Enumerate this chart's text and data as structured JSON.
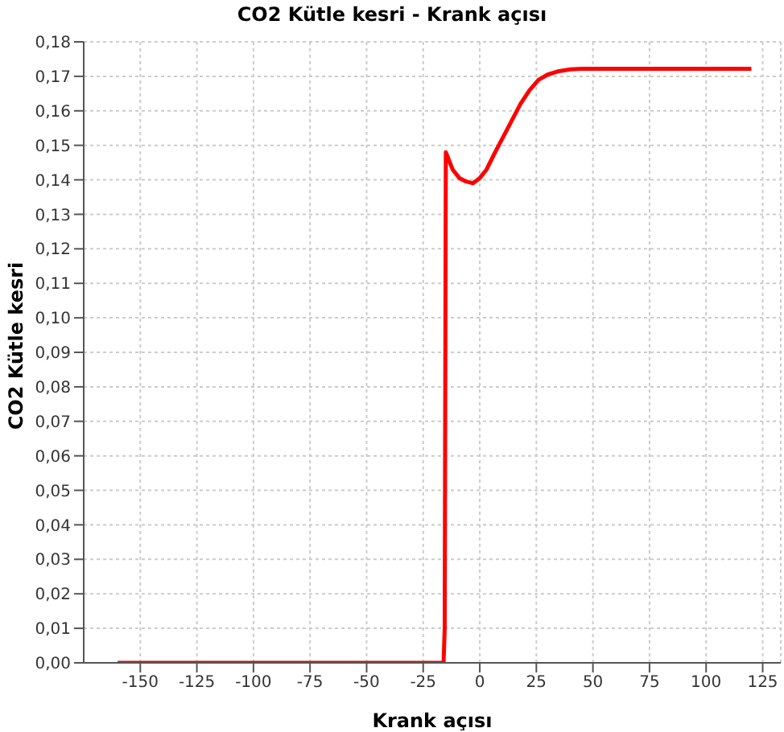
{
  "chart_data": {
    "type": "line",
    "title": "CO2 Kütle kesri - Krank açısı",
    "xlabel": "Krank açısı",
    "ylabel": "CO2 Kütle kesri",
    "x": [
      -160,
      -16,
      -15.5,
      -15,
      -12,
      -9,
      -6,
      -3,
      0,
      3,
      6,
      10,
      14,
      18,
      22,
      26,
      30,
      35,
      40,
      45,
      120
    ],
    "series": [
      {
        "color": "#ff0000",
        "values": [
          0,
          0,
          0.01,
          0.148,
          0.143,
          0.1405,
          0.1395,
          0.139,
          0.1405,
          0.143,
          0.147,
          0.152,
          0.157,
          0.162,
          0.166,
          0.169,
          0.1705,
          0.1715,
          0.172,
          0.1722,
          0.1722
        ]
      }
    ],
    "xlim": [
      -175,
      133
    ],
    "xticks": [
      -150,
      -125,
      -100,
      -75,
      -50,
      -25,
      0,
      25,
      50,
      75,
      100,
      125
    ],
    "ylim": [
      0,
      0.18
    ],
    "yticks": [
      {
        "value": 0,
        "label": "0,00"
      },
      {
        "value": 0.01,
        "label": "0,01"
      },
      {
        "value": 0.02,
        "label": "0,02"
      },
      {
        "value": 0.03,
        "label": "0,03"
      },
      {
        "value": 0.04,
        "label": "0,04"
      },
      {
        "value": 0.05,
        "label": "0,05"
      },
      {
        "value": 0.06,
        "label": "0,06"
      },
      {
        "value": 0.07,
        "label": "0,07"
      },
      {
        "value": 0.08,
        "label": "0,08"
      },
      {
        "value": 0.09,
        "label": "0,09"
      },
      {
        "value": 0.1,
        "label": "0,10"
      },
      {
        "value": 0.11,
        "label": "0,11"
      },
      {
        "value": 0.12,
        "label": "0,12"
      },
      {
        "value": 0.13,
        "label": "0,13"
      },
      {
        "value": 0.14,
        "label": "0,14"
      },
      {
        "value": 0.15,
        "label": "0,15"
      },
      {
        "value": 0.16,
        "label": "0,16"
      },
      {
        "value": 0.17,
        "label": "0,17"
      },
      {
        "value": 0.18,
        "label": "0,18"
      }
    ],
    "grid": true,
    "legend": false,
    "marker": "none",
    "line_style": "solid"
  }
}
